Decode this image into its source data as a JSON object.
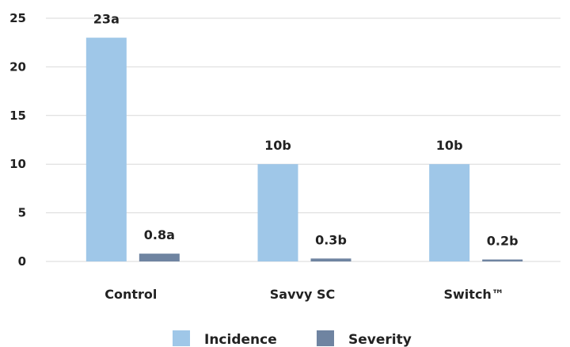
{
  "chart_data": {
    "type": "bar",
    "categories": [
      "Control",
      "Savvy SC",
      "Switch™"
    ],
    "series": [
      {
        "name": "Incidence",
        "values": [
          23,
          10,
          10
        ],
        "labels": [
          "23a",
          "10b",
          "10b"
        ],
        "color": "#9fc7e8"
      },
      {
        "name": "Severity",
        "values": [
          0.8,
          0.3,
          0.2
        ],
        "labels": [
          "0.8a",
          "0.3b",
          "0.2b"
        ],
        "color": "#6f84a1"
      }
    ],
    "yticks": [
      "0",
      "5",
      "10",
      "15",
      "20",
      "25"
    ],
    "ylim": [
      0,
      25
    ],
    "grid": true,
    "legend_position": "bottom",
    "title": "",
    "xlabel": "",
    "ylabel": ""
  }
}
